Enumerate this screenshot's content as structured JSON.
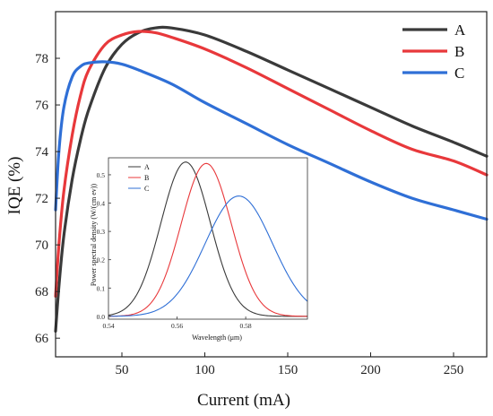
{
  "chart_data": [
    {
      "type": "line",
      "xlabel": "Current (mA)",
      "ylabel": "IQE (%)",
      "xlim": [
        10,
        270
      ],
      "ylim": [
        65.2,
        80
      ],
      "xticks": [
        50,
        100,
        150,
        200,
        250
      ],
      "yticks": [
        66,
        68,
        70,
        72,
        74,
        76,
        78
      ],
      "legend_position": "top-right",
      "series": [
        {
          "name": "A",
          "color": "#3a3a3a",
          "points": [
            [
              10,
              66.3
            ],
            [
              12,
              68.2
            ],
            [
              15,
              70.4
            ],
            [
              20,
              72.8
            ],
            [
              25,
              74.5
            ],
            [
              30,
              75.8
            ],
            [
              40,
              77.6
            ],
            [
              50,
              78.6
            ],
            [
              60,
              79.1
            ],
            [
              70,
              79.3
            ],
            [
              80,
              79.3
            ],
            [
              100,
              79.0
            ],
            [
              125,
              78.3
            ],
            [
              150,
              77.5
            ],
            [
              175,
              76.7
            ],
            [
              200,
              75.9
            ],
            [
              225,
              75.1
            ],
            [
              250,
              74.4
            ],
            [
              270,
              73.8
            ]
          ]
        },
        {
          "name": "B",
          "color": "#e8383b",
          "points": [
            [
              10,
              67.8
            ],
            [
              12,
              70.0
            ],
            [
              15,
              72.3
            ],
            [
              20,
              74.7
            ],
            [
              25,
              76.4
            ],
            [
              30,
              77.5
            ],
            [
              40,
              78.6
            ],
            [
              50,
              79.0
            ],
            [
              60,
              79.15
            ],
            [
              70,
              79.1
            ],
            [
              80,
              78.9
            ],
            [
              100,
              78.4
            ],
            [
              125,
              77.6
            ],
            [
              150,
              76.7
            ],
            [
              175,
              75.8
            ],
            [
              200,
              74.9
            ],
            [
              225,
              74.1
            ],
            [
              250,
              73.6
            ],
            [
              270,
              73.0
            ]
          ]
        },
        {
          "name": "C",
          "color": "#2f6fd6",
          "points": [
            [
              10,
              71.5
            ],
            [
              12,
              74.0
            ],
            [
              15,
              75.9
            ],
            [
              20,
              77.2
            ],
            [
              25,
              77.65
            ],
            [
              30,
              77.8
            ],
            [
              40,
              77.85
            ],
            [
              50,
              77.75
            ],
            [
              60,
              77.5
            ],
            [
              80,
              76.9
            ],
            [
              100,
              76.1
            ],
            [
              125,
              75.2
            ],
            [
              150,
              74.3
            ],
            [
              175,
              73.5
            ],
            [
              200,
              72.7
            ],
            [
              225,
              72.0
            ],
            [
              250,
              71.5
            ],
            [
              270,
              71.1
            ]
          ]
        }
      ]
    },
    {
      "type": "line",
      "xlabel": "Wavelength (μm)",
      "ylabel": "Power spectral density (W/(cm ev))",
      "xlim": [
        0.54,
        0.598
      ],
      "ylim": [
        -0.01,
        0.56
      ],
      "xticks": [
        0.54,
        0.56,
        0.58
      ],
      "xtick_labels": [
        "0.54",
        "0.56",
        "0.58"
      ],
      "yticks": [
        0.0,
        0.1,
        0.2,
        0.3,
        0.4,
        0.5
      ],
      "ytick_labels": [
        "0.0",
        "0.1",
        "0.2",
        "0.3",
        "0.4",
        "0.5"
      ],
      "legend_position": "top-left",
      "series": [
        {
          "name": "A",
          "color": "#3a3a3a",
          "peak_x": 0.5625,
          "peak_y": 0.545,
          "width": 0.0072
        },
        {
          "name": "B",
          "color": "#e8383b",
          "peak_x": 0.5685,
          "peak_y": 0.54,
          "width": 0.0073
        },
        {
          "name": "C",
          "color": "#2f6fd6",
          "peak_x": 0.578,
          "peak_y": 0.425,
          "width": 0.0098
        }
      ]
    }
  ]
}
